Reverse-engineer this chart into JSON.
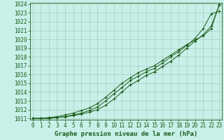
{
  "x": [
    0,
    1,
    2,
    3,
    4,
    5,
    6,
    7,
    8,
    9,
    10,
    11,
    12,
    13,
    14,
    15,
    16,
    17,
    18,
    19,
    20,
    21,
    22,
    23
  ],
  "line1": [
    1011.0,
    1011.0,
    1011.0,
    1011.1,
    1011.2,
    1011.3,
    1011.5,
    1011.7,
    1012.0,
    1012.5,
    1013.2,
    1014.0,
    1014.8,
    1015.3,
    1015.9,
    1016.3,
    1016.9,
    1017.5,
    1018.2,
    1019.0,
    1019.8,
    1020.5,
    1021.5,
    1023.9
  ],
  "line2": [
    1011.0,
    1011.0,
    1011.0,
    1011.1,
    1011.2,
    1011.4,
    1011.6,
    1011.9,
    1012.3,
    1013.0,
    1013.8,
    1014.5,
    1015.3,
    1015.8,
    1016.3,
    1016.7,
    1017.3,
    1018.0,
    1018.6,
    1019.3,
    1020.1,
    1021.2,
    1022.9,
    1023.2
  ],
  "line3": [
    1011.0,
    1011.0,
    1011.1,
    1011.2,
    1011.4,
    1011.6,
    1011.9,
    1012.2,
    1012.7,
    1013.4,
    1014.2,
    1015.0,
    1015.6,
    1016.2,
    1016.6,
    1017.0,
    1017.6,
    1018.2,
    1018.8,
    1019.4,
    1019.9,
    1020.4,
    1021.2,
    1024.0
  ],
  "ylim_min": 1011,
  "ylim_max": 1024,
  "xlim_min": 0,
  "xlim_max": 23,
  "yticks": [
    1011,
    1012,
    1013,
    1014,
    1015,
    1016,
    1017,
    1018,
    1019,
    1020,
    1021,
    1022,
    1023,
    1024
  ],
  "xticks": [
    0,
    1,
    2,
    3,
    4,
    5,
    6,
    7,
    8,
    9,
    10,
    11,
    12,
    13,
    14,
    15,
    16,
    17,
    18,
    19,
    20,
    21,
    22,
    23
  ],
  "line_color": "#1a5c1a",
  "bg_color": "#c8f0e8",
  "grid_color": "#aaccc4",
  "xlabel": "Graphe pression niveau de la mer (hPa)",
  "xlabel_color": "#1a5c1a",
  "tick_color": "#1a5c1a",
  "tick_fontsize": 5.5,
  "xlabel_fontsize": 6.5,
  "linewidth": 0.7,
  "marker": "+",
  "marker_size": 3.5,
  "marker_lw": 0.8
}
